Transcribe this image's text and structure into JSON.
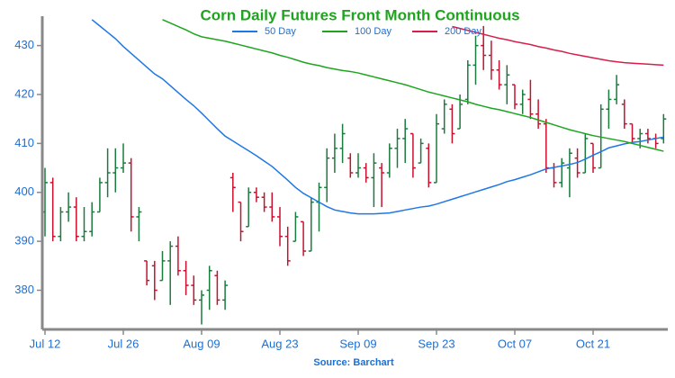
{
  "chart_data": {
    "type": "ohlc",
    "title": "Corn Daily Futures Front Month Continuous",
    "source": "Source: Barchart",
    "categories": [
      "Jul 12",
      null,
      null,
      null,
      null,
      null,
      null,
      null,
      null,
      null,
      "Jul 26",
      null,
      null,
      null,
      null,
      null,
      null,
      null,
      null,
      null,
      "Aug 09",
      null,
      null,
      null,
      null,
      null,
      null,
      null,
      null,
      null,
      "Aug 23",
      null,
      null,
      null,
      null,
      null,
      null,
      null,
      null,
      null,
      "Sep 09",
      null,
      null,
      null,
      null,
      null,
      null,
      null,
      null,
      null,
      "Sep 23",
      null,
      null,
      null,
      null,
      null,
      null,
      null,
      null,
      null,
      "Oct 07",
      null,
      null,
      null,
      null,
      null,
      null,
      null,
      null,
      null,
      "Oct 21",
      null,
      null,
      null,
      null,
      null,
      null,
      null,
      null,
      null
    ],
    "ohlc": {
      "open": [
        396,
        402,
        391,
        396,
        397,
        391,
        392,
        396,
        402,
        404,
        405,
        406,
        395,
        386,
        385,
        382,
        386,
        389,
        384,
        381,
        378,
        380,
        383,
        378,
        403,
        398,
        393,
        400,
        399,
        397,
        395,
        391,
        390,
        394,
        388,
        398,
        401,
        407,
        409,
        407,
        404,
        405,
        403,
        405,
        404,
        409,
        411,
        412,
        406,
        409,
        402,
        413,
        417,
        413,
        419,
        426,
        430,
        428,
        425,
        422,
        422,
        418,
        419,
        416,
        414,
        405,
        402,
        405,
        407,
        404,
        410,
        405,
        417,
        419,
        418,
        414,
        411,
        412,
        411,
        411
      ],
      "high": [
        405,
        403,
        397,
        400,
        399,
        397,
        398,
        403,
        409,
        409,
        410,
        407,
        397,
        386,
        386,
        388,
        390,
        391,
        386,
        383,
        380,
        385,
        384,
        382,
        404,
        398,
        401,
        401,
        400,
        400,
        397,
        393,
        396,
        394,
        399,
        402,
        409,
        412,
        414,
        408,
        408,
        406,
        408,
        406,
        410,
        413,
        415,
        412,
        411,
        410,
        416,
        419,
        418,
        420,
        427,
        432,
        434,
        431,
        427,
        426,
        422,
        421,
        423,
        419,
        415,
        406,
        407,
        409,
        409,
        412,
        410,
        418,
        421,
        424,
        419,
        414,
        413,
        413,
        412,
        416
      ],
      "low": [
        391,
        390,
        390,
        394,
        390,
        390,
        391,
        396,
        399,
        400,
        404,
        392,
        390,
        381,
        378,
        382,
        377,
        383,
        379,
        377,
        373,
        376,
        377,
        376,
        396,
        390,
        393,
        398,
        396,
        394,
        389,
        385,
        390,
        387,
        388,
        392,
        398,
        404,
        406,
        403,
        403,
        402,
        397,
        397,
        403,
        405,
        406,
        403,
        406,
        401,
        402,
        412,
        410,
        413,
        418,
        422,
        425,
        423,
        421,
        418,
        417,
        416,
        415,
        413,
        404,
        401,
        401,
        399,
        403,
        404,
        404,
        405,
        413,
        418,
        413,
        410,
        409,
        410,
        409,
        410
      ],
      "close": [
        402,
        391,
        396,
        397,
        391,
        392,
        396,
        402,
        404,
        405,
        406,
        395,
        396,
        382,
        380,
        386,
        389,
        384,
        381,
        378,
        379,
        384,
        378,
        381,
        401,
        392,
        400,
        399,
        397,
        395,
        391,
        386,
        395,
        388,
        398,
        401,
        407,
        409,
        412,
        404,
        405,
        403,
        406,
        404,
        409,
        411,
        413,
        405,
        410,
        402,
        414,
        418,
        412,
        418,
        426,
        430,
        428,
        425,
        422,
        424,
        418,
        420,
        416,
        414,
        405,
        402,
        406,
        408,
        404,
        411,
        405,
        417,
        419,
        422,
        414,
        411,
        412,
        411,
        410,
        415
      ]
    },
    "up_color": "#1b7a3e",
    "down_color": "#c8102e",
    "series": [
      {
        "name": "50 Day",
        "color": "#1f77e6",
        "values": [
          null,
          null,
          null,
          null,
          null,
          null,
          435.3,
          434,
          432.7,
          431.4,
          429.8,
          428.4,
          427,
          425.6,
          424.2,
          423.2,
          421.8,
          420.4,
          419,
          417.7,
          416.2,
          414.6,
          413,
          411.5,
          410.5,
          409.5,
          408.5,
          407.5,
          406.4,
          405.3,
          403.9,
          402.5,
          401,
          399.8,
          398.9,
          398,
          397.1,
          396.4,
          396.1,
          395.8,
          395.6,
          395.6,
          395.6,
          395.7,
          395.8,
          396.1,
          396.4,
          396.7,
          397,
          397.2,
          397.6,
          398.1,
          398.6,
          399.1,
          399.6,
          400.1,
          400.6,
          401.1,
          401.6,
          402.2,
          402.6,
          403.1,
          403.6,
          404.2,
          404.8,
          405.1,
          405.4,
          405.7,
          406.1,
          406.8,
          407.6,
          408.3,
          409.1,
          409.5,
          409.9,
          410.2,
          410.4,
          410.7,
          411,
          411.3
        ]
      },
      {
        "name": "100 Day",
        "color": "#1ea51e",
        "values": [
          null,
          null,
          null,
          null,
          null,
          null,
          null,
          null,
          null,
          null,
          null,
          null,
          null,
          null,
          null,
          435.3,
          434.6,
          433.9,
          433.2,
          432.4,
          431.8,
          431.5,
          431.2,
          430.9,
          430.5,
          430.1,
          429.7,
          429.3,
          428.9,
          428.5,
          428,
          427.6,
          427.1,
          426.6,
          426.2,
          425.9,
          425.5,
          425.2,
          424.9,
          424.7,
          424.4,
          424,
          423.6,
          423.2,
          422.8,
          422.4,
          422,
          421.5,
          421,
          420.5,
          420.1,
          419.7,
          419.3,
          418.9,
          418.5,
          418,
          417.6,
          417.2,
          416.9,
          416.5,
          416.1,
          415.7,
          415.3,
          414.8,
          414.3,
          413.8,
          413.3,
          412.8,
          412.4,
          412,
          411.6,
          411.3,
          411,
          410.7,
          410.4,
          410,
          409.6,
          409.2,
          408.8,
          408.4
        ]
      },
      {
        "name": "200 Day",
        "color": "#d81e4a",
        "values": [
          null,
          null,
          null,
          null,
          null,
          null,
          null,
          null,
          null,
          null,
          null,
          null,
          null,
          null,
          null,
          null,
          null,
          null,
          null,
          null,
          null,
          null,
          null,
          null,
          null,
          null,
          null,
          null,
          null,
          null,
          null,
          null,
          null,
          null,
          null,
          null,
          null,
          null,
          null,
          null,
          null,
          null,
          null,
          null,
          null,
          null,
          null,
          null,
          null,
          null,
          null,
          null,
          433.9,
          433.5,
          433.1,
          432.7,
          432.3,
          431.9,
          431.5,
          431.2,
          430.8,
          430.5,
          430.2,
          429.8,
          429.5,
          429.1,
          428.8,
          428.4,
          428.1,
          427.8,
          427.5,
          427.2,
          426.9,
          426.7,
          426.5,
          426.4,
          426.3,
          426.2,
          426.1,
          426
        ]
      }
    ],
    "ylim": [
      372,
      436
    ],
    "yticks": [
      380,
      390,
      400,
      410,
      420,
      430
    ]
  }
}
